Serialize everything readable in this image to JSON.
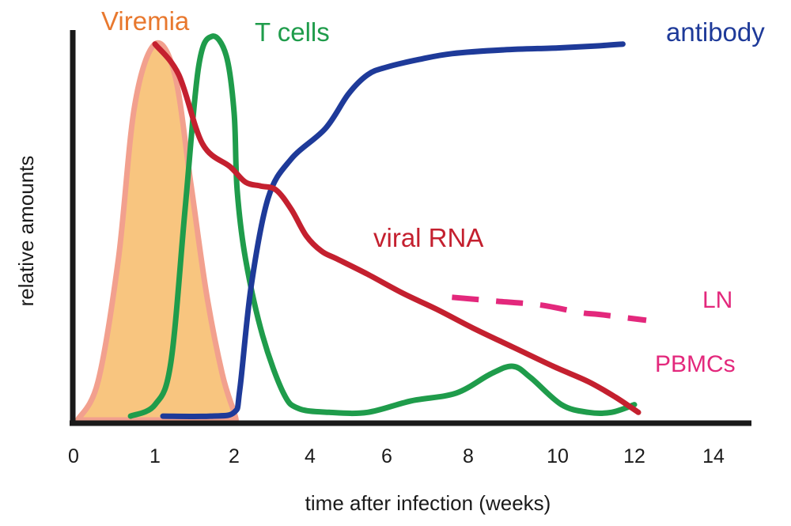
{
  "chart_data": {
    "type": "line",
    "xlabel": "time after infection (weeks)",
    "ylabel": "relative amounts",
    "xlim": [
      0,
      14.5
    ],
    "ylim": [
      0,
      1
    ],
    "xticks": [
      "0",
      "1",
      "2",
      "4",
      "6",
      "8",
      "10",
      "12",
      "14"
    ],
    "grid": false,
    "labels": {
      "viremia": "Viremia",
      "tcells": "T cells",
      "antibody": "antibody",
      "viral_rna": "viral RNA",
      "ln": "LN",
      "pbmcs": "PBMCs"
    },
    "series": [
      {
        "name": "Viremia",
        "style": "filled-area",
        "color": "#F8C57F",
        "edge_color": "#F2A08E",
        "points": [
          [
            0.05,
            0.0
          ],
          [
            0.3,
            0.1
          ],
          [
            0.55,
            0.42
          ],
          [
            0.75,
            0.82
          ],
          [
            1.0,
            0.98
          ],
          [
            1.25,
            0.9
          ],
          [
            1.45,
            0.62
          ],
          [
            1.65,
            0.33
          ],
          [
            1.85,
            0.12
          ],
          [
            2.0,
            0.02
          ],
          [
            2.05,
            0.0
          ]
        ]
      },
      {
        "name": "T cells",
        "color": "#1F9C4B",
        "points": [
          [
            0.7,
            0.01
          ],
          [
            1.0,
            0.04
          ],
          [
            1.2,
            0.15
          ],
          [
            1.38,
            0.55
          ],
          [
            1.55,
            0.92
          ],
          [
            1.72,
            1.0
          ],
          [
            1.9,
            0.95
          ],
          [
            2.0,
            0.8
          ],
          [
            2.08,
            0.6
          ],
          [
            2.3,
            0.42
          ],
          [
            2.75,
            0.22
          ],
          [
            3.3,
            0.07
          ],
          [
            3.7,
            0.03
          ],
          [
            4.5,
            0.02
          ],
          [
            5.5,
            0.02
          ],
          [
            6.6,
            0.05
          ],
          [
            7.7,
            0.07
          ],
          [
            8.5,
            0.12
          ],
          [
            9.0,
            0.14
          ],
          [
            9.4,
            0.11
          ],
          [
            10.1,
            0.04
          ],
          [
            10.8,
            0.02
          ],
          [
            11.4,
            0.02
          ],
          [
            12.0,
            0.04
          ]
        ]
      },
      {
        "name": "antibody",
        "color": "#1E3A99",
        "points": [
          [
            1.1,
            0.01
          ],
          [
            1.7,
            0.01
          ],
          [
            2.0,
            0.02
          ],
          [
            2.15,
            0.08
          ],
          [
            2.45,
            0.35
          ],
          [
            2.9,
            0.58
          ],
          [
            3.5,
            0.68
          ],
          [
            4.4,
            0.76
          ],
          [
            5.0,
            0.85
          ],
          [
            5.5,
            0.9
          ],
          [
            6.0,
            0.92
          ],
          [
            6.8,
            0.94
          ],
          [
            7.6,
            0.955
          ],
          [
            8.8,
            0.965
          ],
          [
            10.0,
            0.97
          ],
          [
            11.0,
            0.975
          ],
          [
            11.7,
            0.98
          ]
        ]
      },
      {
        "name": "viral RNA",
        "color": "#C4202F",
        "points": [
          [
            1.0,
            0.98
          ],
          [
            1.3,
            0.9
          ],
          [
            1.6,
            0.72
          ],
          [
            1.95,
            0.66
          ],
          [
            2.3,
            0.62
          ],
          [
            2.7,
            0.61
          ],
          [
            3.1,
            0.6
          ],
          [
            3.5,
            0.55
          ],
          [
            3.9,
            0.48
          ],
          [
            4.3,
            0.44
          ],
          [
            4.7,
            0.42
          ],
          [
            5.5,
            0.38
          ],
          [
            6.4,
            0.33
          ],
          [
            7.2,
            0.29
          ],
          [
            8.1,
            0.24
          ],
          [
            9.0,
            0.19
          ],
          [
            9.9,
            0.14
          ],
          [
            10.8,
            0.1
          ],
          [
            11.5,
            0.06
          ],
          [
            12.1,
            0.02
          ]
        ]
      },
      {
        "name": "LN",
        "style": "dashed",
        "color": "#E3287C",
        "points": [
          [
            7.6,
            0.32
          ],
          [
            8.6,
            0.31
          ],
          [
            9.6,
            0.3
          ],
          [
            10.6,
            0.28
          ],
          [
            11.1,
            0.275
          ],
          [
            12.3,
            0.26
          ]
        ]
      }
    ],
    "colors": {
      "axis": "#1a1a1a",
      "viremia_label": "#E8782E",
      "tcells_label": "#1F9C4B",
      "antibody_label": "#1E3A99",
      "viral_rna_label": "#C4202F",
      "ln_label": "#E3287C",
      "pbmcs_label": "#E3287C"
    }
  }
}
